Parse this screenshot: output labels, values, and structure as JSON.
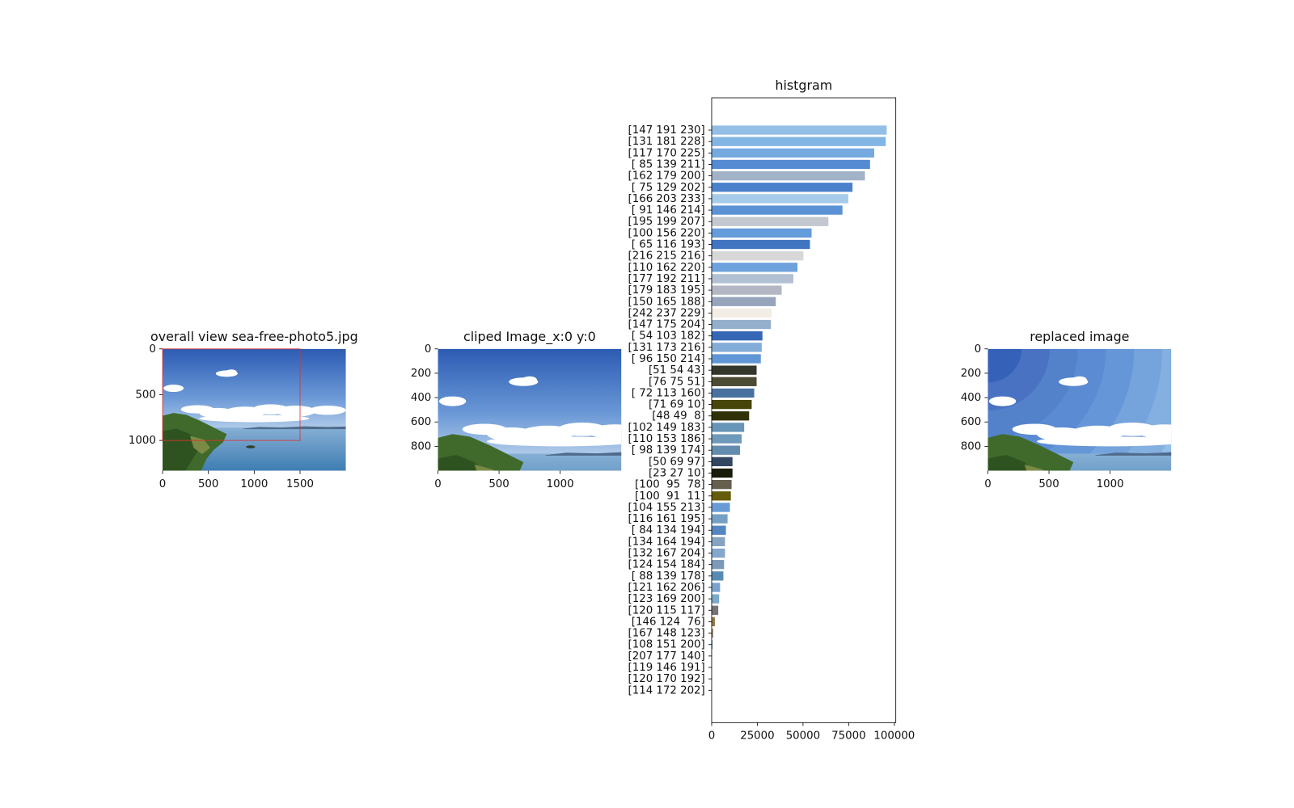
{
  "chart_data": [
    {
      "type": "image",
      "title": "overall view sea-free-photo5.jpg",
      "xlim": [
        0,
        2000
      ],
      "ylim": [
        1330,
        0
      ],
      "xticks": [
        0,
        500,
        1000,
        1500
      ],
      "yticks": [
        0,
        500,
        1000
      ],
      "clip_box": {
        "x": [
          0,
          1500
        ],
        "y": [
          0,
          1000
        ],
        "color": "#e03030"
      }
    },
    {
      "type": "image",
      "title": "cliped Image_x:0 y:0",
      "xlim": [
        0,
        1500
      ],
      "ylim": [
        1000,
        0
      ],
      "xticks": [
        0,
        500,
        1000
      ],
      "yticks": [
        0,
        200,
        400,
        600,
        800
      ]
    },
    {
      "type": "barh",
      "title": "histgram",
      "categories": [
        "[147 191 230]",
        "[131 181 228]",
        "[117 170 225]",
        "[ 85 139 211]",
        "[162 179 200]",
        "[ 75 129 202]",
        "[166 203 233]",
        "[ 91 146 214]",
        "[195 199 207]",
        "[100 156 220]",
        "[ 65 116 193]",
        "[216 215 216]",
        "[110 162 220]",
        "[177 192 211]",
        "[179 183 195]",
        "[150 165 188]",
        "[242 237 229]",
        "[147 175 204]",
        "[ 54 103 182]",
        "[131 173 216]",
        "[ 96 150 214]",
        "[51 54 43]",
        "[76 75 51]",
        "[ 72 113 160]",
        "[71 69 10]",
        "[48 49  8]",
        "[102 149 183]",
        "[110 153 186]",
        "[ 98 139 174]",
        "[50 69 97]",
        "[23 27 10]",
        "[100  95  78]",
        "[100  91  11]",
        "[104 155 213]",
        "[116 161 195]",
        "[ 84 134 194]",
        "[134 164 194]",
        "[132 167 204]",
        "[124 154 184]",
        "[ 88 139 178]",
        "[121 162 206]",
        "[123 169 200]",
        "[120 115 117]",
        "[146 124  76]",
        "[167 148 123]",
        "[108 151 200]",
        "[207 177 140]",
        "[119 146 191]",
        "[120 170 192]",
        "[114 172 202]"
      ],
      "values": [
        95800,
        95300,
        89000,
        86700,
        83900,
        77100,
        74800,
        71600,
        63900,
        54700,
        53800,
        50200,
        47000,
        44700,
        38300,
        35100,
        32800,
        32400,
        27800,
        27400,
        26900,
        24600,
        24600,
        23300,
        21900,
        20500,
        17800,
        16400,
        15500,
        11400,
        11400,
        10900,
        10500,
        10000,
        8700,
        7800,
        7300,
        7300,
        6800,
        6400,
        4600,
        4100,
        3600,
        1800,
        900,
        500,
        200,
        100,
        100,
        50
      ],
      "colors": [
        "rgb(147,191,230)",
        "rgb(131,181,228)",
        "rgb(117,170,225)",
        "rgb(85,139,211)",
        "rgb(162,179,200)",
        "rgb(75,129,202)",
        "rgb(166,203,233)",
        "rgb(91,146,214)",
        "rgb(195,199,207)",
        "rgb(100,156,220)",
        "rgb(65,116,193)",
        "rgb(216,215,216)",
        "rgb(110,162,220)",
        "rgb(177,192,211)",
        "rgb(179,183,195)",
        "rgb(150,165,188)",
        "rgb(242,237,229)",
        "rgb(147,175,204)",
        "rgb(54,103,182)",
        "rgb(131,173,216)",
        "rgb(96,150,214)",
        "rgb(51,54,43)",
        "rgb(76,75,51)",
        "rgb(72,113,160)",
        "rgb(71,69,10)",
        "rgb(48,49,8)",
        "rgb(102,149,183)",
        "rgb(110,153,186)",
        "rgb(98,139,174)",
        "rgb(50,69,97)",
        "rgb(23,27,10)",
        "rgb(100,95,78)",
        "rgb(100,91,11)",
        "rgb(104,155,213)",
        "rgb(116,161,195)",
        "rgb(84,134,194)",
        "rgb(134,164,194)",
        "rgb(132,167,204)",
        "rgb(124,154,184)",
        "rgb(88,139,178)",
        "rgb(121,162,206)",
        "rgb(123,169,200)",
        "rgb(120,115,117)",
        "rgb(146,124,76)",
        "rgb(167,148,123)",
        "rgb(108,151,200)",
        "rgb(207,177,140)",
        "rgb(119,146,191)",
        "rgb(120,170,192)",
        "rgb(114,172,202)"
      ],
      "xlim": [
        0,
        100800
      ],
      "xticks": [
        0,
        25000,
        50000,
        75000,
        100000
      ]
    },
    {
      "type": "image",
      "title": "replaced image",
      "xlim": [
        0,
        1500
      ],
      "ylim": [
        1000,
        0
      ],
      "xticks": [
        0,
        500,
        1000
      ],
      "yticks": [
        0,
        200,
        400,
        600,
        800
      ]
    }
  ]
}
